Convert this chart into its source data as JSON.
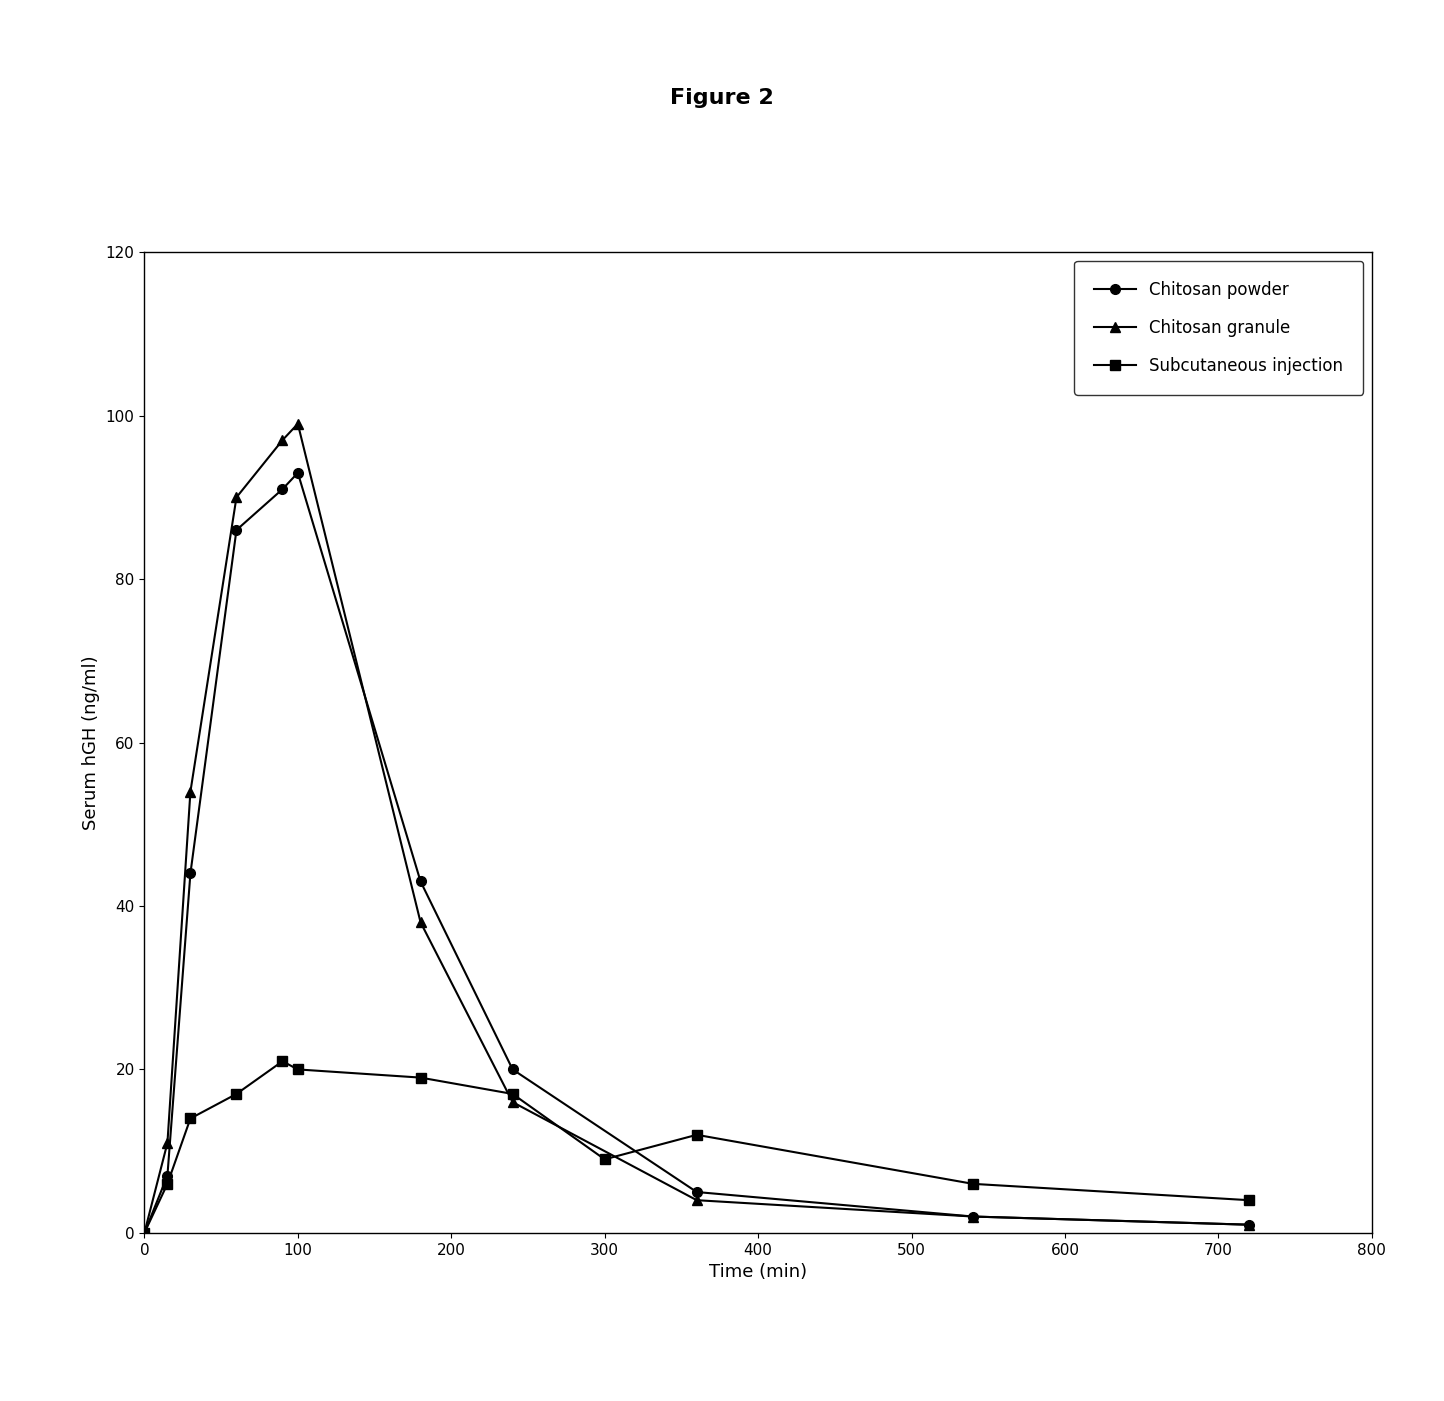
{
  "title": "Figure 2",
  "xlabel": "Time (min)",
  "ylabel": "Serum hGH (ng/ml)",
  "xlim": [
    0,
    800
  ],
  "ylim": [
    0,
    120
  ],
  "xticks": [
    0,
    100,
    200,
    300,
    400,
    500,
    600,
    700,
    800
  ],
  "yticks": [
    0,
    20,
    40,
    60,
    80,
    100,
    120
  ],
  "series": [
    {
      "label": "Chitosan powder",
      "x": [
        0,
        15,
        30,
        60,
        90,
        100,
        180,
        240,
        360,
        540,
        720
      ],
      "y": [
        0,
        7,
        44,
        86,
        91,
        93,
        43,
        20,
        5,
        2,
        1
      ],
      "marker": "o",
      "color": "#000000",
      "linewidth": 1.5,
      "markersize": 7
    },
    {
      "label": "Chitosan granule",
      "x": [
        0,
        15,
        30,
        60,
        90,
        100,
        180,
        240,
        360,
        540,
        720
      ],
      "y": [
        0,
        11,
        54,
        90,
        97,
        99,
        38,
        16,
        4,
        2,
        1
      ],
      "marker": "^",
      "color": "#000000",
      "linewidth": 1.5,
      "markersize": 7
    },
    {
      "label": "Subcutaneous injection",
      "x": [
        0,
        15,
        30,
        60,
        90,
        100,
        180,
        240,
        300,
        360,
        540,
        720
      ],
      "y": [
        0,
        6,
        14,
        17,
        21,
        20,
        19,
        17,
        9,
        12,
        6,
        4
      ],
      "marker": "s",
      "color": "#000000",
      "linewidth": 1.5,
      "markersize": 7
    }
  ],
  "background_color": "#ffffff",
  "title_fontsize": 16,
  "title_fontweight": "bold",
  "axis_label_fontsize": 13,
  "tick_fontsize": 11,
  "legend_fontsize": 12,
  "legend_loc": "upper right"
}
